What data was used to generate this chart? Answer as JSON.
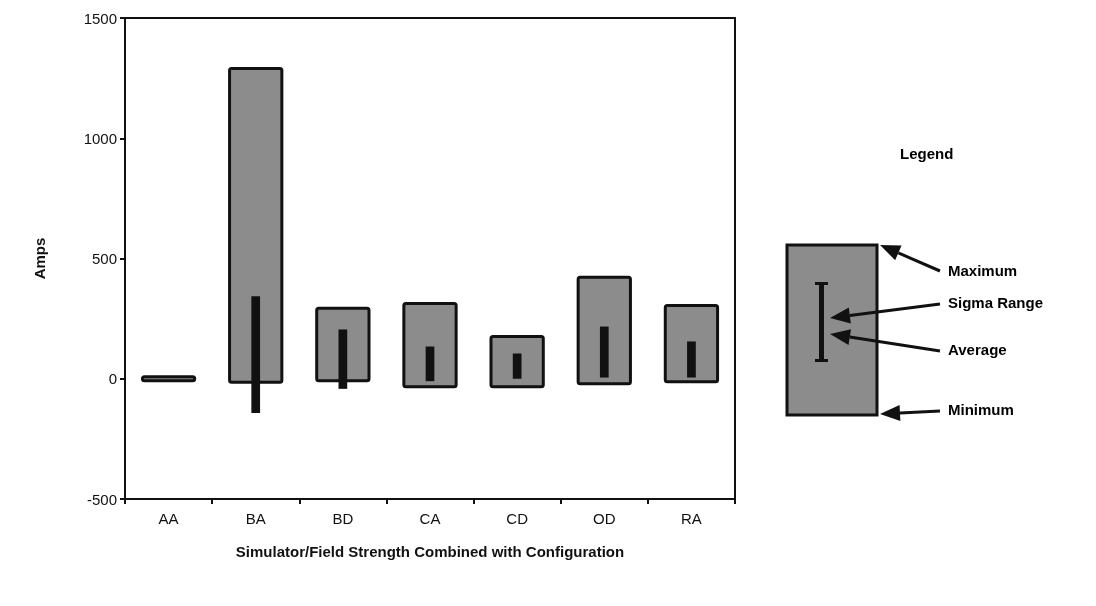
{
  "chart_data": {
    "type": "bar",
    "ylabel": "Amps",
    "xlabel": "Simulator/Field Strength Combined with Configuration",
    "categories": [
      "AA",
      "BA",
      "BD",
      "CA",
      "CD",
      "OD",
      "RA"
    ],
    "series": [
      {
        "color": "#8c8c8c",
        "base": [
          -8,
          -15,
          -8,
          -33,
          -33,
          -21,
          -12
        ],
        "values": [
          16,
          1305,
          301,
          346,
          209,
          443,
          317
        ]
      },
      {
        "color": "#111111",
        "base": [
          null,
          -142,
          -42,
          -10,
          0,
          5,
          5
        ],
        "values": [
          null,
          485,
          247,
          144,
          105,
          212,
          150
        ]
      }
    ],
    "ylim": [
      -500,
      1500
    ],
    "yticks": [
      -500,
      0,
      500,
      1000,
      1500
    ],
    "grid": false,
    "annotations": [
      "Legend",
      "Maximum",
      "Sigma Range",
      "Average",
      "Minimum"
    ]
  }
}
